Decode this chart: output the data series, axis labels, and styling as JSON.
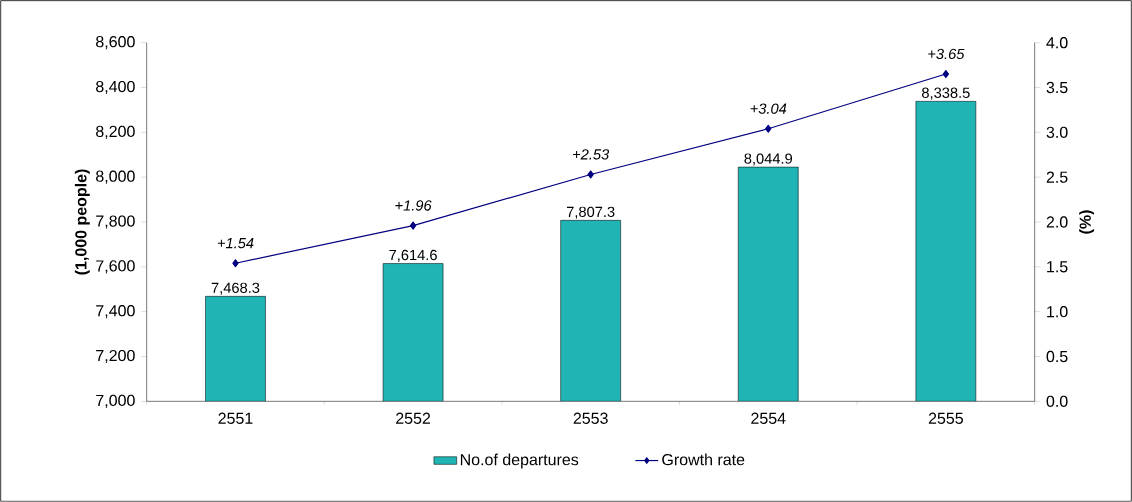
{
  "chart_data": {
    "type": "bar",
    "categories": [
      "2551",
      "2552",
      "2553",
      "2554",
      "2555"
    ],
    "ylabel": "(1,000 people)",
    "y2label": "(%)",
    "ylim": [
      7000,
      8600
    ],
    "yticks": [
      {
        "value": 7000,
        "label": "7,000"
      },
      {
        "value": 7200,
        "label": "7,200"
      },
      {
        "value": 7400,
        "label": "7,400"
      },
      {
        "value": 7600,
        "label": "7,600"
      },
      {
        "value": 7800,
        "label": "7,800"
      },
      {
        "value": 8000,
        "label": "8,000"
      },
      {
        "value": 8200,
        "label": "8,200"
      },
      {
        "value": 8400,
        "label": "8,400"
      },
      {
        "value": 8600,
        "label": "8,600"
      }
    ],
    "y2lim": [
      0,
      4
    ],
    "y2ticks": [
      {
        "value": 0,
        "label": "0.0"
      },
      {
        "value": 0.5,
        "label": "0.5"
      },
      {
        "value": 1,
        "label": "1.0"
      },
      {
        "value": 1.5,
        "label": "1.5"
      },
      {
        "value": 2,
        "label": "2.0"
      },
      {
        "value": 2.5,
        "label": "2.5"
      },
      {
        "value": 3,
        "label": "3.0"
      },
      {
        "value": 3.5,
        "label": "3.5"
      },
      {
        "value": 4,
        "label": "4.0"
      }
    ],
    "legend": "bottom",
    "marker": "diamond",
    "series": [
      {
        "name": "No.of departures",
        "color": "#20b4b4",
        "values": [
          7468.3,
          7614.6,
          7807.3,
          8044.9,
          8338.5
        ],
        "value_labels": [
          "7,468.3",
          "7,614.6",
          "7,807.3",
          "8,044.9",
          "8,338.5"
        ]
      },
      {
        "name": "Growth rate",
        "type": "line",
        "axis": "y2",
        "color": "#000080",
        "values": [
          1.54,
          1.96,
          2.53,
          3.04,
          3.65
        ],
        "value_labels": [
          "+1.54",
          "+1.96",
          "+2.53",
          "+3.04",
          "+3.65"
        ]
      }
    ]
  }
}
